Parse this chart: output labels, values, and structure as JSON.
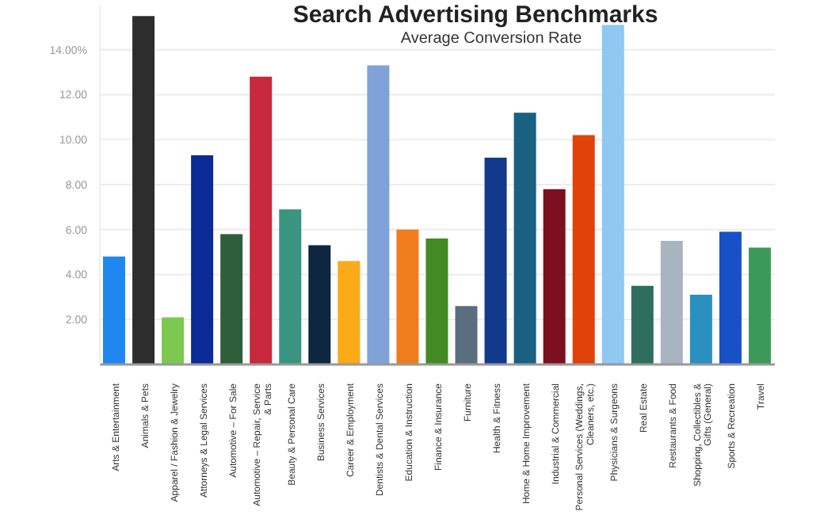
{
  "chart_data": {
    "type": "bar",
    "title": "Search Advertising Benchmarks",
    "subtitle": "Average Conversion Rate",
    "categories": [
      "Arts & Entertainment",
      "Animals & Pets",
      "Apparel / Fashion & Jewelry",
      "Attorneys & Legal Services",
      "Automotive – For Sale",
      "Automotive – Repair, Service & Parts",
      "Beauty & Personal Care",
      "Business Services",
      "Career & Employment",
      "Dentists & Dental Services",
      "Education & Instruction",
      "Finance & Insurance",
      "Furniture",
      "Health & Fitness",
      "Home & Home Improvement",
      "Industrial & Commercial",
      "Personal Services (Weddings, Cleaners, etc.)",
      "Physicians & Surgeons",
      "Real Estate",
      "Restaurants & Food",
      "Shopping, Collectibles & Gifts (General)",
      "Sports & Recreation",
      "Travel"
    ],
    "values": [
      4.8,
      15.5,
      2.1,
      9.3,
      5.8,
      12.8,
      6.9,
      5.3,
      4.6,
      13.3,
      6.0,
      5.6,
      2.6,
      9.2,
      11.2,
      7.8,
      10.2,
      15.1,
      3.5,
      5.5,
      3.1,
      5.9,
      5.2
    ],
    "colors": [
      "#1e88f0",
      "#2d2d2d",
      "#7dc850",
      "#0a2a96",
      "#2e5e3c",
      "#c8283c",
      "#3a9580",
      "#0e2640",
      "#fbaa18",
      "#7fa2d8",
      "#f07d1e",
      "#438a25",
      "#5a6e80",
      "#123a8c",
      "#1a6080",
      "#7a1020",
      "#e0420a",
      "#8fc8f0",
      "#2e6e5e",
      "#a8b4bf",
      "#2a90c0",
      "#1850c8",
      "#3c9a58"
    ],
    "ylim": [
      0,
      16
    ],
    "yticks": [
      {
        "value": 2,
        "label": "2.00"
      },
      {
        "value": 4,
        "label": "4.00"
      },
      {
        "value": 6,
        "label": "6.00"
      },
      {
        "value": 8,
        "label": "8.00"
      },
      {
        "value": 10,
        "label": "10.00"
      },
      {
        "value": 12,
        "label": "12.00"
      },
      {
        "value": 14,
        "label": "14.00%"
      }
    ],
    "grid": "y"
  }
}
